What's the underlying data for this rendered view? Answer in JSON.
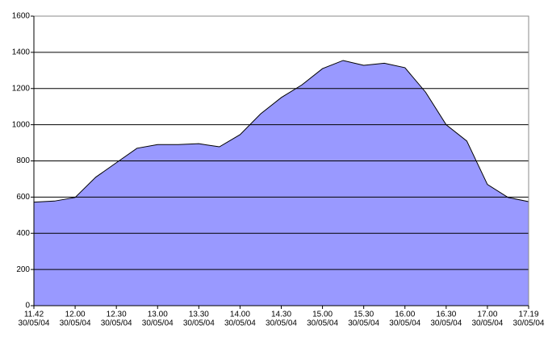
{
  "chart_data": {
    "type": "area",
    "categories": [
      [
        "11.42",
        "30/05/04"
      ],
      null,
      [
        "12.00",
        "30/05/04"
      ],
      null,
      [
        "12.30",
        "30/05/04"
      ],
      null,
      [
        "13.00",
        "30/05/04"
      ],
      null,
      [
        "13.30",
        "30/05/04"
      ],
      null,
      [
        "14.00",
        "30/05/04"
      ],
      null,
      [
        "14.30",
        "30/05/04"
      ],
      null,
      [
        "15.00",
        "30/05/04"
      ],
      null,
      [
        "15.30",
        "30/05/04"
      ],
      null,
      [
        "16.00",
        "30/05/04"
      ],
      null,
      [
        "16.30",
        "30/05/04"
      ],
      null,
      [
        "17.00",
        "30/05/04"
      ],
      null,
      [
        "17.19",
        "30/05/04"
      ]
    ],
    "values": [
      572,
      578,
      598,
      710,
      790,
      870,
      890,
      890,
      895,
      878,
      945,
      1060,
      1150,
      1220,
      1310,
      1355,
      1328,
      1340,
      1315,
      1180,
      1000,
      910,
      670,
      598,
      575
    ],
    "color": "#9999ff",
    "ylim": [
      0,
      1600
    ],
    "yticks": [
      0,
      200,
      400,
      600,
      800,
      1000,
      1200,
      1400,
      1600
    ],
    "grid": true
  }
}
